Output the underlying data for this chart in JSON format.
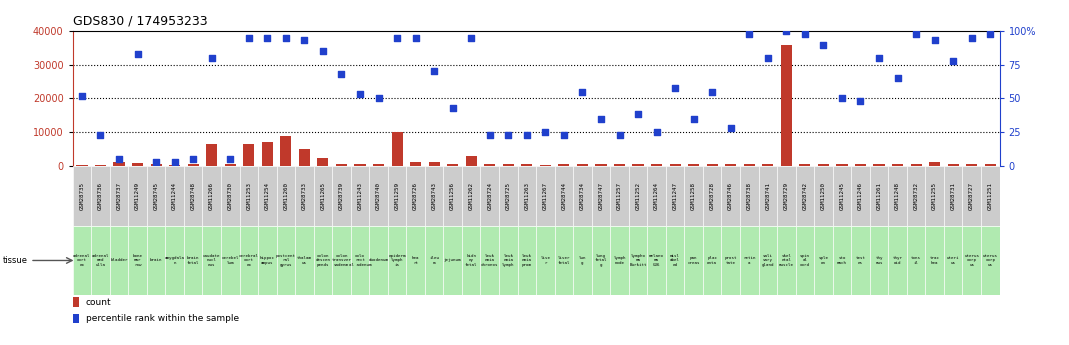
{
  "title": "GDS830 / 174953233",
  "samples": [
    "GSM28735",
    "GSM28736",
    "GSM28737",
    "GSM11249",
    "GSM28745",
    "GSM11244",
    "GSM28748",
    "GSM11266",
    "GSM28730",
    "GSM11253",
    "GSM11254",
    "GSM11260",
    "GSM28733",
    "GSM11265",
    "GSM28739",
    "GSM11243",
    "GSM28740",
    "GSM11259",
    "GSM28726",
    "GSM28743",
    "GSM11256",
    "GSM11262",
    "GSM28724",
    "GSM28725",
    "GSM11263",
    "GSM11267",
    "GSM28744",
    "GSM28734",
    "GSM28747",
    "GSM11257",
    "GSM11252",
    "GSM11264",
    "GSM11247",
    "GSM11258",
    "GSM28728",
    "GSM28746",
    "GSM28738",
    "GSM28741",
    "GSM28729",
    "GSM28742",
    "GSM11250",
    "GSM11245",
    "GSM11246",
    "GSM11261",
    "GSM11248",
    "GSM28732",
    "GSM11255",
    "GSM28731",
    "GSM28727",
    "GSM11251"
  ],
  "tissues": [
    "adrenal\ncort\nex",
    "adrenal\nmed\nulla",
    "bladder",
    "bone\nmar\nrow",
    "brain",
    "amygdala\nn",
    "brain\nfetal",
    "caudate\nnucl\neus",
    "cerebel\nlum",
    "cerebral\ncort\nex",
    "hippoc\nampus",
    "postcent\nral\ngyrus",
    "thalam\nus",
    "colon\ndescen\npends",
    "colon\ntransver\nsadenm",
    "colo\nrect\nal adenum",
    "duodenum",
    "epiderm\nlymph\nis",
    "hea\nrt",
    "ileu\nm",
    "jejunum",
    "kidn\ney\nfetal",
    "leuk\nemia\nchronos",
    "leuk\nemia\nlymph",
    "leuk\nemia\nprom",
    "live\nr",
    "liver\nfetal",
    "lun\ng",
    "lung\nfetal\ng",
    "lymph\nnode",
    "lympho\nma\nBurkitt",
    "melano\nma\nG36",
    "misl\nabel\ned",
    "pan\ncreas",
    "plac\nenta",
    "prost\ntate",
    "retin\na",
    "sali\nvary\ngland",
    "skel\netal\nmuscle",
    "spin\nal\ncord",
    "sple\nen",
    "sto\nmach",
    "test\nes",
    "thy\nmus",
    "thyr\noid",
    "tons\nil",
    "trac\nhea",
    "uteri\nus",
    "uterus\ncorp\nus",
    "uterus\ncorp\nus"
  ],
  "counts": [
    200,
    300,
    1200,
    700,
    400,
    300,
    400,
    6500,
    400,
    6300,
    7000,
    8800,
    4800,
    2200,
    500,
    400,
    500,
    10000,
    1000,
    1000,
    400,
    2800,
    400,
    600,
    600,
    300,
    500,
    600,
    500,
    500,
    500,
    600,
    400,
    400,
    400,
    400,
    500,
    500,
    36000,
    400,
    400,
    400,
    400,
    400,
    400,
    400,
    1200,
    400,
    400,
    400
  ],
  "percentiles": [
    52,
    23,
    5,
    83,
    3,
    3,
    5,
    80,
    5,
    95,
    95,
    95,
    93,
    85,
    68,
    53,
    50,
    95,
    95,
    70,
    43,
    95,
    23,
    23,
    23,
    25,
    23,
    55,
    35,
    23,
    38,
    25,
    58,
    35,
    55,
    28,
    98,
    80,
    100,
    98,
    90,
    50,
    48,
    80,
    65,
    98,
    93,
    78,
    95,
    98
  ],
  "bar_color": "#c0392b",
  "dot_color": "#2040cc",
  "tissue_bg": "#b0eab0",
  "sample_bg": "#cccccc",
  "yticks_left": [
    0,
    10000,
    20000,
    30000,
    40000
  ],
  "yticks_right": [
    0,
    25,
    50,
    75,
    100
  ],
  "ylim_left": [
    0,
    40000
  ],
  "ylim_right": [
    0,
    100
  ]
}
